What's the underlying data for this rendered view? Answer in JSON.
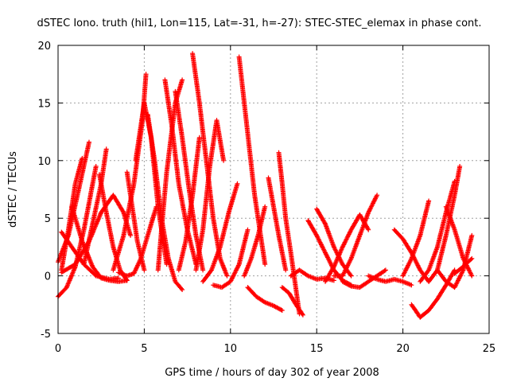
{
  "chart_data": {
    "type": "scatter",
    "title": "dSTEC Iono. truth (hil1, Lon=115, Lat=-31, h=-27): STEC-STEC_elemax in phase cont.",
    "xlabel": "GPS time / hours of day 302 of year 2008",
    "ylabel": "dSTEC  / TECUs",
    "xlim": [
      0,
      25
    ],
    "ylim": [
      -5,
      20
    ],
    "xticks": [
      0,
      5,
      10,
      15,
      20,
      25
    ],
    "yticks": [
      -5,
      0,
      5,
      10,
      15,
      20
    ],
    "grid": true,
    "marker": "+",
    "color": "#ff0000",
    "series": [
      {
        "x": [
          0,
          0.6,
          1.2,
          1.8
        ],
        "y": [
          1.2,
          3.5,
          7.5,
          11.6
        ]
      },
      {
        "x": [
          0,
          0.5,
          1.0,
          1.5,
          2.2
        ],
        "y": [
          -1.8,
          -1.0,
          0.8,
          4.0,
          9.5
        ]
      },
      {
        "x": [
          0.2,
          0.6,
          1.0,
          1.4
        ],
        "y": [
          0.5,
          4.0,
          8.0,
          10.2
        ]
      },
      {
        "x": [
          0.2,
          0.8,
          1.5,
          2.2,
          3.0,
          3.5
        ],
        "y": [
          3.8,
          2.5,
          1.0,
          0.0,
          -0.3,
          -0.2
        ]
      },
      {
        "x": [
          0.8,
          1.4,
          2.0,
          2.5,
          3.0,
          3.5,
          4.0
        ],
        "y": [
          6.0,
          3.0,
          0.8,
          -0.2,
          -0.4,
          -0.5,
          -0.4
        ]
      },
      {
        "x": [
          0.2,
          1.0,
          1.8,
          2.5,
          3.2,
          3.8,
          4.2
        ],
        "y": [
          0.3,
          1.0,
          3.0,
          5.5,
          7.0,
          5.5,
          3.5
        ]
      },
      {
        "x": [
          1.5,
          2.0,
          2.5,
          2.8
        ],
        "y": [
          1.0,
          4.5,
          8.0,
          11.0
        ]
      },
      {
        "x": [
          2.4,
          2.8,
          3.2,
          3.6,
          4.0
        ],
        "y": [
          8.8,
          5.5,
          2.5,
          0.5,
          -0.4
        ]
      },
      {
        "x": [
          3.2,
          3.8,
          4.4,
          4.9,
          5.1
        ],
        "y": [
          0.5,
          3.5,
          8.0,
          13.5,
          17.5
        ]
      },
      {
        "x": [
          4.0,
          4.3,
          4.6,
          5.0
        ],
        "y": [
          9.0,
          6.0,
          3.0,
          0.5
        ]
      },
      {
        "x": [
          3.5,
          4.0,
          4.4,
          4.8,
          5.3,
          5.7
        ],
        "y": [
          0.3,
          0.0,
          0.2,
          1.5,
          4.0,
          6.0
        ]
      },
      {
        "x": [
          4.5,
          5.0,
          5.4,
          5.8,
          6.3
        ],
        "y": [
          10.0,
          15.0,
          12.0,
          6.0,
          1.0
        ]
      },
      {
        "x": [
          5.2,
          5.6,
          6.0,
          6.4,
          6.8,
          7.2
        ],
        "y": [
          14.0,
          10.0,
          5.0,
          1.5,
          -0.5,
          -1.2
        ]
      },
      {
        "x": [
          5.8,
          6.0,
          6.3,
          6.8,
          7.2
        ],
        "y": [
          0.5,
          4.0,
          9.0,
          15.0,
          17.0
        ]
      },
      {
        "x": [
          6.2,
          6.6,
          7.0,
          7.5,
          8.0
        ],
        "y": [
          17.0,
          13.0,
          8.0,
          4.0,
          1.0
        ]
      },
      {
        "x": [
          6.8,
          7.2,
          7.6,
          8.0,
          8.4
        ],
        "y": [
          16.0,
          12.0,
          7.5,
          3.5,
          0.5
        ]
      },
      {
        "x": [
          7.0,
          7.4,
          7.8,
          8.2
        ],
        "y": [
          0.5,
          3.0,
          7.0,
          12.0
        ]
      },
      {
        "x": [
          7.8,
          8.2,
          8.6,
          9.0,
          9.4,
          9.8
        ],
        "y": [
          19.3,
          15.0,
          10.0,
          5.0,
          1.5,
          0.0
        ]
      },
      {
        "x": [
          8.0,
          8.4,
          8.8,
          9.2,
          9.6
        ],
        "y": [
          0.5,
          4.0,
          9.5,
          13.5,
          10.0
        ]
      },
      {
        "x": [
          8.4,
          8.9,
          9.4,
          9.9,
          10.4
        ],
        "y": [
          -0.5,
          0.5,
          2.5,
          5.5,
          8.0
        ]
      },
      {
        "x": [
          9.0,
          9.5,
          10.0,
          10.5,
          11.0
        ],
        "y": [
          -0.8,
          -1.0,
          -0.5,
          1.0,
          4.0
        ]
      },
      {
        "x": [
          10.5,
          10.8,
          11.1,
          11.4,
          11.8,
          12.0
        ],
        "y": [
          19.0,
          15.0,
          11.0,
          7.0,
          3.0,
          1.0
        ]
      },
      {
        "x": [
          11.0,
          11.5,
          12.0,
          12.5,
          13.0
        ],
        "y": [
          -1.0,
          -1.8,
          -2.3,
          -2.6,
          -3.0
        ]
      },
      {
        "x": [
          10.8,
          11.2,
          11.6,
          12.0
        ],
        "y": [
          0.0,
          1.5,
          3.5,
          6.0
        ]
      },
      {
        "x": [
          12.2,
          12.5,
          12.8,
          13.2
        ],
        "y": [
          8.5,
          6.0,
          3.5,
          0.5
        ]
      },
      {
        "x": [
          12.8,
          13.0,
          13.2,
          13.5,
          14.0
        ],
        "y": [
          10.7,
          8.0,
          5.0,
          2.0,
          -3.3
        ]
      },
      {
        "x": [
          13.0,
          13.4,
          13.8,
          14.2
        ],
        "y": [
          -1.0,
          -1.5,
          -2.5,
          -3.4
        ]
      },
      {
        "x": [
          13.5,
          14.0,
          14.5,
          15.0,
          15.5,
          16.0
        ],
        "y": [
          0.0,
          0.5,
          0.0,
          -0.3,
          -0.2,
          -0.4
        ]
      },
      {
        "x": [
          14.5,
          15.0,
          15.5,
          16.0,
          16.5,
          17.0
        ],
        "y": [
          4.8,
          3.5,
          2.0,
          0.5,
          -0.4,
          -0.8
        ]
      },
      {
        "x": [
          15.0,
          15.5,
          16.0,
          16.5,
          17.0
        ],
        "y": [
          5.8,
          4.5,
          2.5,
          1.0,
          0.0
        ]
      },
      {
        "x": [
          15.5,
          16.0,
          16.5,
          17.0,
          17.5,
          18.0
        ],
        "y": [
          -0.5,
          0.8,
          2.5,
          4.0,
          5.3,
          4.0
        ]
      },
      {
        "x": [
          16.0,
          16.5,
          17.0,
          17.5,
          18.0,
          18.5
        ],
        "y": [
          0.0,
          0.0,
          1.5,
          3.5,
          5.5,
          7.0
        ]
      },
      {
        "x": [
          16.5,
          17.0,
          17.5,
          18.0,
          18.5,
          19.0
        ],
        "y": [
          -0.5,
          -0.9,
          -1.0,
          -0.5,
          0.0,
          0.5
        ]
      },
      {
        "x": [
          18.0,
          18.5,
          19.0,
          19.5,
          20.0,
          20.5
        ],
        "y": [
          0.0,
          -0.3,
          -0.5,
          -0.3,
          -0.5,
          -0.8
        ]
      },
      {
        "x": [
          19.5,
          20.0,
          20.5,
          21.0,
          21.5
        ],
        "y": [
          4.0,
          3.2,
          2.0,
          0.5,
          -0.5
        ]
      },
      {
        "x": [
          20.0,
          20.5,
          21.0,
          21.5
        ],
        "y": [
          0.0,
          1.5,
          3.5,
          6.5
        ]
      },
      {
        "x": [
          20.5,
          21.0,
          21.5,
          22.0,
          22.5,
          23.0
        ],
        "y": [
          -2.5,
          -3.6,
          -3.0,
          -2.0,
          -0.8,
          0.5
        ]
      },
      {
        "x": [
          21.0,
          21.5,
          22.0,
          22.5,
          23.0
        ],
        "y": [
          -0.5,
          0.5,
          2.5,
          5.5,
          8.2
        ]
      },
      {
        "x": [
          21.5,
          22.0,
          22.5,
          23.0,
          23.3
        ],
        "y": [
          -0.5,
          0.5,
          3.5,
          7.0,
          9.5
        ]
      },
      {
        "x": [
          22.5,
          23.0,
          23.5,
          24.0
        ],
        "y": [
          6.0,
          4.0,
          1.5,
          0.0
        ]
      },
      {
        "x": [
          22.0,
          22.5,
          23.0,
          23.5,
          24.0
        ],
        "y": [
          0.5,
          -0.5,
          -1.0,
          0.5,
          3.5
        ]
      },
      {
        "x": [
          23.0,
          23.5,
          24.0
        ],
        "y": [
          0.2,
          0.8,
          1.5
        ]
      }
    ]
  }
}
